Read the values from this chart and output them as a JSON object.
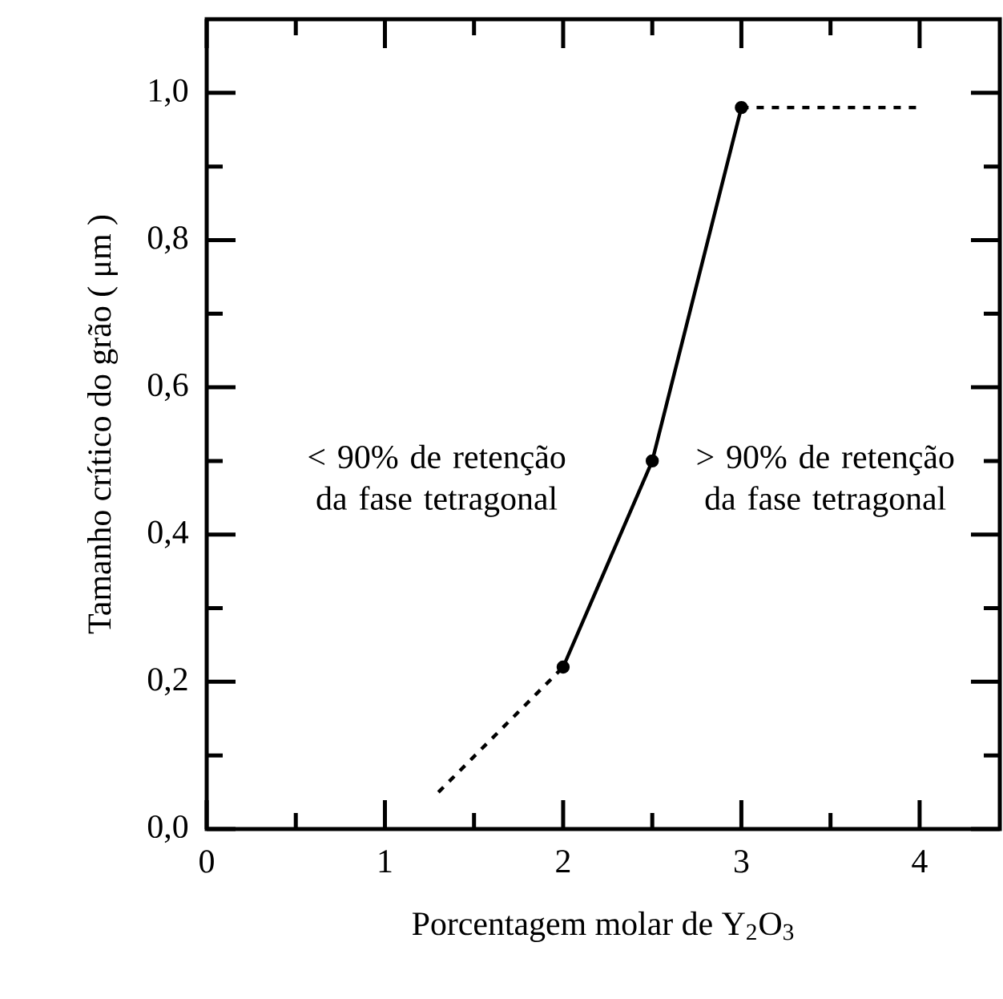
{
  "chart_data": {
    "type": "line",
    "xlabel": "Porcentagem molar de Y$_{2}$O$_{3}$",
    "ylabel": "Tamanho crítico do grão ( μm )",
    "xlim": [
      0,
      4.45
    ],
    "ylim": [
      0,
      1.1
    ],
    "xticks": [
      0,
      1,
      2,
      3,
      4
    ],
    "yticks": [
      {
        "value": 0,
        "label": "0,0"
      },
      {
        "value": 0.2,
        "label": "0,2"
      },
      {
        "value": 0.4,
        "label": "0,4"
      },
      {
        "value": 0.6,
        "label": "0,6"
      },
      {
        "value": 0.8,
        "label": "0,8"
      },
      {
        "value": 1.0,
        "label": "1,0"
      }
    ],
    "grid": false,
    "series": [
      {
        "color": "#000000",
        "line_style": "dotted",
        "x": [
          1.3,
          2
        ],
        "values": [
          0.05,
          0.22
        ]
      },
      {
        "color": "#000000",
        "line_style": "solid",
        "marker": "circle",
        "x": [
          2,
          2.5,
          3
        ],
        "values": [
          0.22,
          0.5,
          0.98
        ]
      },
      {
        "color": "#000000",
        "line_style": "dotted",
        "x": [
          3,
          4
        ],
        "values": [
          0.98,
          0.98
        ]
      }
    ],
    "annotations": [
      "< 90% de retenção da fase tetragonal",
      "> 90% de retenção da fase tetragonal"
    ]
  }
}
